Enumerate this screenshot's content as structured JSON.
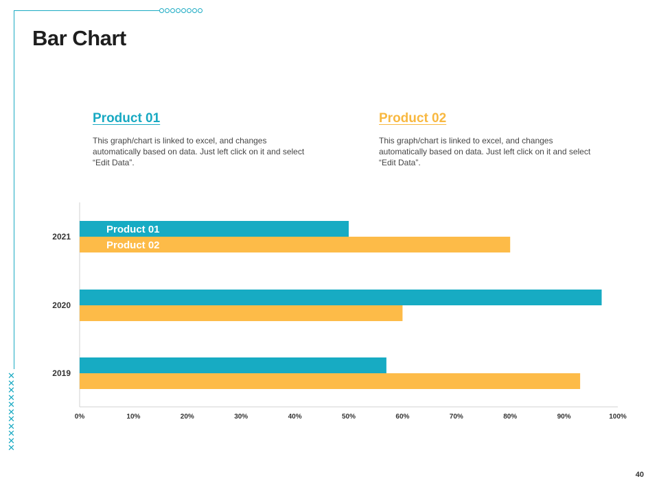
{
  "title": "Bar Chart",
  "products": [
    {
      "name": "Product 01",
      "description": "This graph/chart is linked to excel, and changes automatically based on data. Just left click on it and select “Edit Data”."
    },
    {
      "name": "Product 02",
      "description": "This graph/chart is linked to excel, and changes automatically based on data. Just left click on it and select “Edit Data”."
    }
  ],
  "page_number": "40",
  "colors": {
    "accent": "#18a9c2",
    "product01": "#17abc3",
    "product02": "#fdbb48"
  },
  "chart_data": {
    "type": "bar",
    "orientation": "horizontal",
    "categories": [
      "2021",
      "2020",
      "2019"
    ],
    "series": [
      {
        "name": "Product 01",
        "values": [
          50,
          97,
          57
        ],
        "color": "#17abc3"
      },
      {
        "name": "Product 02",
        "values": [
          80,
          60,
          93
        ],
        "color": "#fdbb48"
      }
    ],
    "xlim": [
      0,
      100
    ],
    "xticks": [
      "0%",
      "10%",
      "20%",
      "30%",
      "40%",
      "50%",
      "60%",
      "70%",
      "80%",
      "90%",
      "100%"
    ],
    "legend_position": "inside-top-left",
    "title": "",
    "xlabel": "",
    "ylabel": ""
  }
}
